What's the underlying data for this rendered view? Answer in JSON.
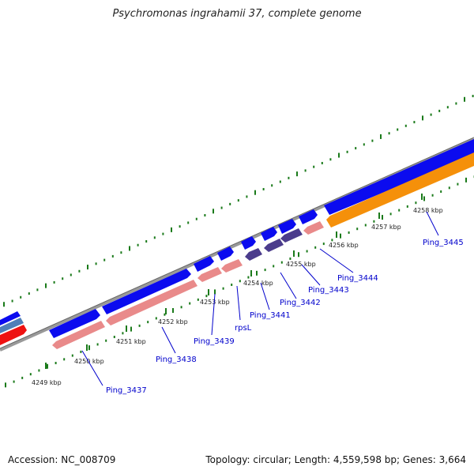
{
  "title": "Psychromonas ingrahamii 37, complete genome",
  "footer": {
    "accession": "Accession: NC_008709",
    "topology": "Topology: circular; Length: 4,559,598 bp; Genes: 3,664"
  },
  "colors": {
    "backbone": "#888888",
    "forward_gene": "#0b0bef",
    "reverse_gene": "#e98a8a",
    "rna": "#4b3c8c",
    "orange_gene": "#f5900a",
    "red_gene": "#ee1111",
    "steel_gene": "#4f7fb8",
    "ticks": "#1a7a1a",
    "labels": "#0000cc"
  },
  "scale": {
    "unit": "kbp",
    "ticks": [
      {
        "kbp": 4249,
        "label": "4249 kbp"
      },
      {
        "kbp": 4250,
        "label": "4250 kbp"
      },
      {
        "kbp": 4251,
        "label": "4251 kbp"
      },
      {
        "kbp": 4252,
        "label": "4252 kbp"
      },
      {
        "kbp": 4253,
        "label": "4253 kbp"
      },
      {
        "kbp": 4254,
        "label": "4254 kbp"
      },
      {
        "kbp": 4255,
        "label": "4255 kbp"
      },
      {
        "kbp": 4256,
        "label": "4256 kbp"
      },
      {
        "kbp": 4257,
        "label": "4257 kbp"
      },
      {
        "kbp": 4258,
        "label": "4258 kbp"
      }
    ]
  },
  "gene_labels": [
    {
      "name": "Ping_3437"
    },
    {
      "name": "Ping_3438"
    },
    {
      "name": "Ping_3439"
    },
    {
      "name": "rpsL"
    },
    {
      "name": "Ping_3441"
    },
    {
      "name": "Ping_3442"
    },
    {
      "name": "Ping_3443"
    },
    {
      "name": "Ping_3444"
    },
    {
      "name": "Ping_3445"
    }
  ]
}
